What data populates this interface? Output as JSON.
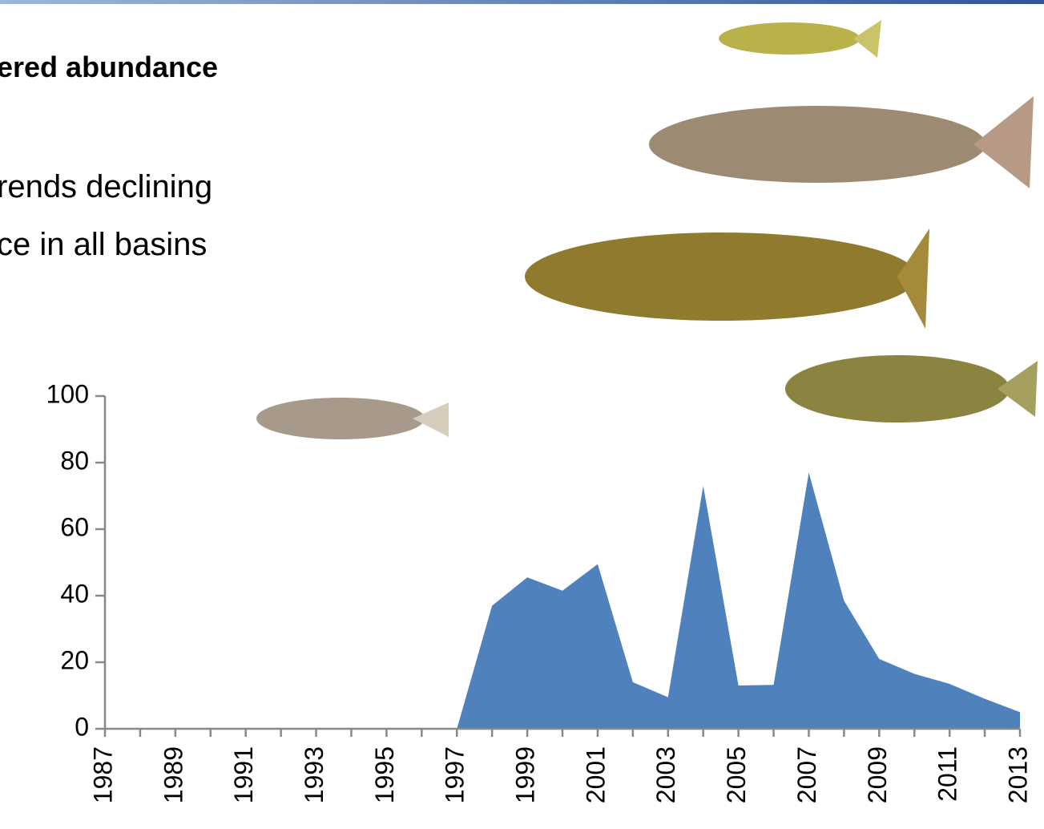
{
  "header": {
    "line1": "ered abundance",
    "line2": "rends declining",
    "line3": "ce in all basins"
  },
  "chart_data": {
    "type": "area",
    "categories": [
      "1987",
      null,
      "1989",
      null,
      "1991",
      null,
      "1993",
      null,
      "1995",
      null,
      "1997",
      null,
      "1999",
      null,
      "2001",
      null,
      "2003",
      null,
      "2005",
      null,
      "2007",
      null,
      "2009",
      null,
      "2011",
      null,
      "2013"
    ],
    "values": [
      0,
      0,
      0,
      0,
      0,
      0,
      0,
      0,
      0,
      0,
      0,
      37,
      45.5,
      41.5,
      49.5,
      14,
      9.5,
      73,
      13,
      13.2,
      77,
      38.5,
      21,
      16.5,
      13.5,
      9,
      5
    ],
    "color": "#4f81bd",
    "ylim": [
      0,
      100
    ],
    "yticks": [
      0,
      20,
      40,
      60,
      80,
      100
    ]
  }
}
